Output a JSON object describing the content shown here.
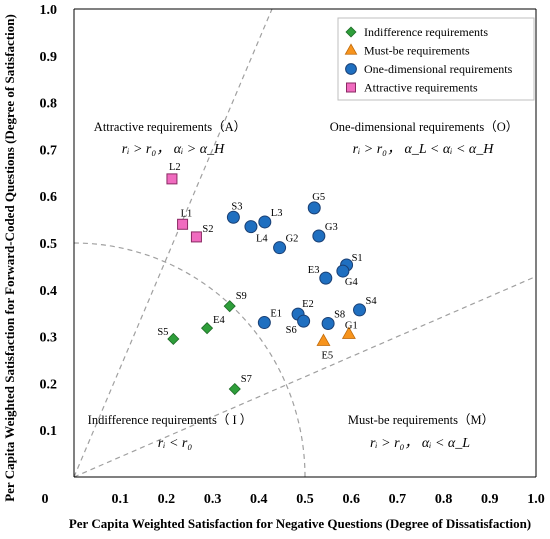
{
  "chart_data": {
    "type": "scatter",
    "xlabel": "Per Capita Weighted Satisfaction for Negative Questions (Degree of Dissatisfaction)",
    "ylabel": "Per Capita Weighted Satisfaction for Forward-Coded Questions (Degree of Satisfaction)",
    "xlim": [
      0,
      1.0
    ],
    "ylim": [
      0,
      1.0
    ],
    "origin_label": "0",
    "xticks": [
      "0.1",
      "0.2",
      "0.3",
      "0.4",
      "0.5",
      "0.6",
      "0.7",
      "0.8",
      "0.9",
      "1.0"
    ],
    "yticks": [
      "0.1",
      "0.2",
      "0.3",
      "0.4",
      "0.5",
      "0.6",
      "0.7",
      "0.8",
      "0.9",
      "1.0"
    ],
    "grid": false,
    "legend_position": "top-right",
    "series": [
      {
        "name": "Indifference requirements",
        "marker": "diamond",
        "color": "#2e9e3a",
        "points": [
          {
            "label": "S5",
            "x": 0.215,
            "y": 0.295
          },
          {
            "label": "E4",
            "x": 0.288,
            "y": 0.318
          },
          {
            "label": "S9",
            "x": 0.337,
            "y": 0.365
          },
          {
            "label": "S7",
            "x": 0.348,
            "y": 0.188
          }
        ]
      },
      {
        "name": "Must-be requirements",
        "marker": "triangle",
        "color": "#f7941d",
        "points": [
          {
            "label": "E5",
            "x": 0.54,
            "y": 0.29
          },
          {
            "label": "G1",
            "x": 0.595,
            "y": 0.305
          }
        ]
      },
      {
        "name": "One-dimensional requirements",
        "marker": "circle",
        "color": "#1f6fc0",
        "points": [
          {
            "label": "S3",
            "x": 0.345,
            "y": 0.555
          },
          {
            "label": "L4",
            "x": 0.383,
            "y": 0.535
          },
          {
            "label": "L3",
            "x": 0.413,
            "y": 0.545
          },
          {
            "label": "G2",
            "x": 0.445,
            "y": 0.49
          },
          {
            "label": "G5",
            "x": 0.52,
            "y": 0.575
          },
          {
            "label": "G3",
            "x": 0.53,
            "y": 0.515
          },
          {
            "label": "S1",
            "x": 0.59,
            "y": 0.453
          },
          {
            "label": "G4",
            "x": 0.582,
            "y": 0.44
          },
          {
            "label": "E3",
            "x": 0.545,
            "y": 0.425
          },
          {
            "label": "S4",
            "x": 0.618,
            "y": 0.357
          },
          {
            "label": "E1",
            "x": 0.412,
            "y": 0.33
          },
          {
            "label": "E2",
            "x": 0.485,
            "y": 0.348
          },
          {
            "label": "S6",
            "x": 0.497,
            "y": 0.333
          },
          {
            "label": "S8",
            "x": 0.55,
            "y": 0.328
          }
        ]
      },
      {
        "name": "Attractive requirements",
        "marker": "square",
        "color": "#f06bbf",
        "points": [
          {
            "label": "L2",
            "x": 0.212,
            "y": 0.637
          },
          {
            "label": "L1",
            "x": 0.235,
            "y": 0.54
          },
          {
            "label": "S2",
            "x": 0.265,
            "y": 0.513
          }
        ]
      }
    ],
    "regions": [
      {
        "title": "Attractive requirements（A）",
        "condition": "rᵢ > r₀，  αᵢ > α_H"
      },
      {
        "title": "One-dimensional requirements（O）",
        "condition": "rᵢ > r₀，  α_L < αᵢ < α_H"
      },
      {
        "title": "Indifference requirements（ I ）",
        "condition": "rᵢ < r₀"
      },
      {
        "title": "Must-be requirements（M）",
        "condition": "rᵢ > r₀，  αᵢ < α_L"
      }
    ],
    "reference_lines": [
      {
        "type": "ray",
        "through": [
          0.3,
          0.7
        ],
        "style": "dashed"
      },
      {
        "type": "ray",
        "through": [
          0.7,
          0.3
        ],
        "style": "dashed"
      },
      {
        "type": "arc",
        "radius": 0.5,
        "style": "dashed"
      }
    ]
  },
  "colors": {
    "dashed_line": "#a0a0a0",
    "axis": "#000000"
  }
}
